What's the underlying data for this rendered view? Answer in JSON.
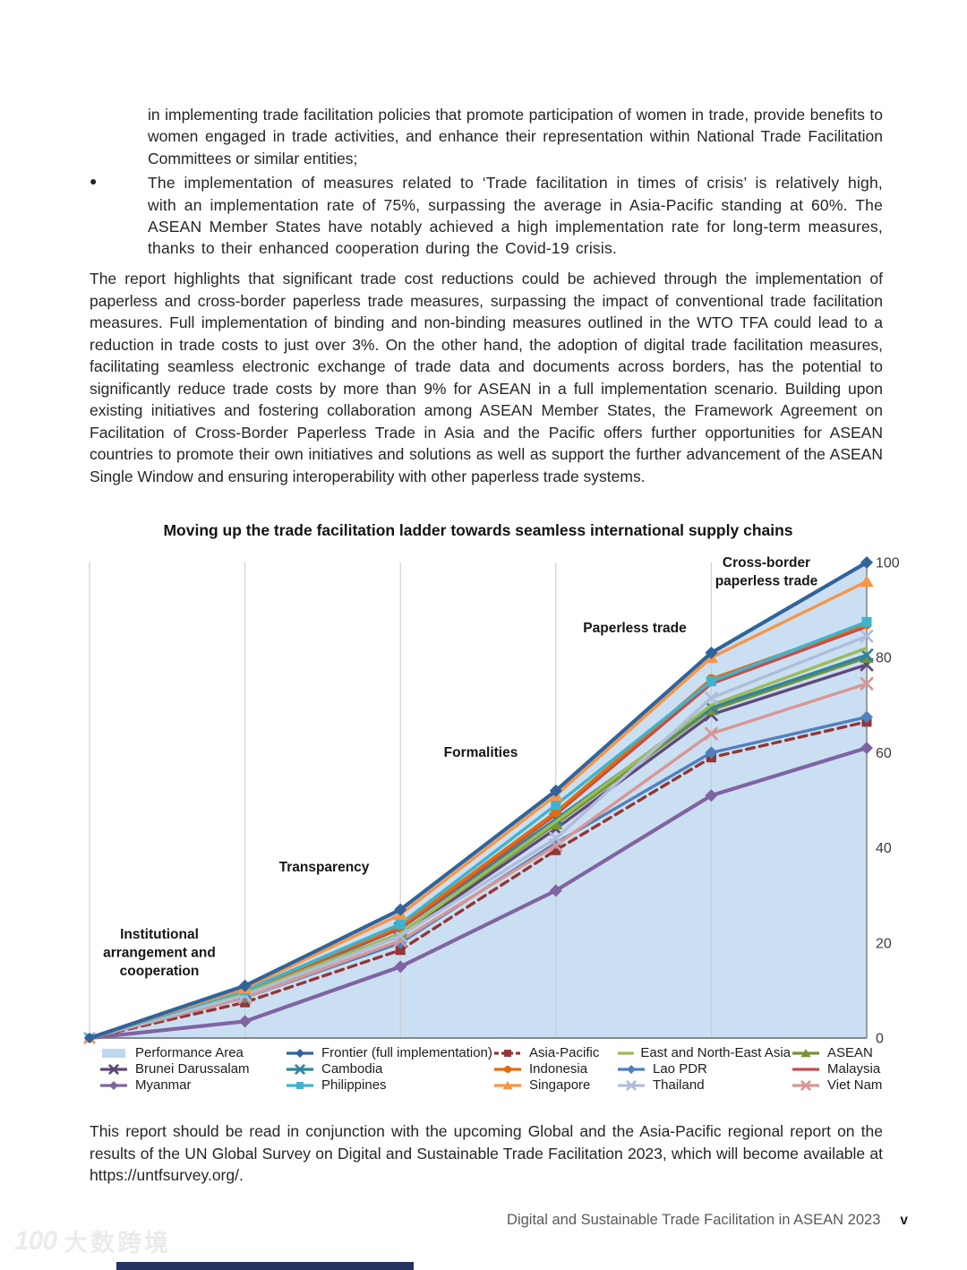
{
  "document": {
    "bullets": [
      {
        "marker": "",
        "text": "in implementing trade facilitation policies that promote participation of women in trade, provide benefits to women engaged in trade activities, and enhance their representation within National Trade Facilitation Committees or similar entities;"
      },
      {
        "marker": "●",
        "text": "The implementation of measures related to ‘Trade facilitation in times of crisis’ is relatively high, with an implementation rate of 75%, surpassing the average in Asia-Pacific standing at 60%. The ASEAN Member States have notably achieved a high implementation rate for long-term measures, thanks to their enhanced cooperation during the Covid-19 crisis."
      }
    ],
    "paragraph": "The report highlights that significant trade cost reductions could be achieved through the implementation of paperless and cross-border paperless trade measures, surpassing the impact of conventional trade facilitation measures. Full implementation of binding and non-binding measures outlined in the WTO TFA could lead to a reduction in trade costs to just over 3%. On the other hand, the adoption of digital trade facilitation measures, facilitating seamless electronic exchange of trade data and documents across borders, has the potential to significantly reduce trade costs by more than 9% for ASEAN in a full implementation scenario. Building upon existing initiatives and fostering collaboration among ASEAN Member States, the Framework Agreement on Facilitation of Cross-Border Paperless Trade in Asia and the Pacific offers further opportunities for ASEAN countries to promote their own initiatives and solutions as well as support the further advancement of the ASEAN Single Window and ensuring interoperability with other paperless trade systems.",
    "footnote": "This report should be read in conjunction with the upcoming Global and the Asia-Pacific regional report on the results of the UN Global Survey on Digital and Sustainable Trade Facilitation 2023, which will become available at https://untfsurvey.org/.",
    "footer": {
      "title": "Digital and Sustainable Trade Facilitation in ASEAN 2023",
      "page_number": "v"
    },
    "watermark": {
      "logo": "100",
      "text": "大数跨境"
    }
  },
  "chart_data": {
    "type": "line",
    "title": "Moving up the trade facilitation ladder towards seamless international supply chains",
    "categories": [
      "Institutional arrangement and cooperation",
      "Transparency",
      "Formalities",
      "Paperless trade",
      "Cross-border paperless trade"
    ],
    "stage_labels": [
      {
        "text": "Institutional arrangement and cooperation",
        "lines": [
          "Institutional",
          "arrangement and",
          "cooperation"
        ]
      },
      {
        "text": "Transparency",
        "lines": [
          "Transparency"
        ]
      },
      {
        "text": "Formalities",
        "lines": [
          "Formalities"
        ]
      },
      {
        "text": "Paperless trade",
        "lines": [
          "Paperless trade"
        ]
      },
      {
        "text": "Cross-border paperless trade",
        "lines": [
          "Cross-border",
          "paperless trade"
        ]
      }
    ],
    "ylim": [
      0,
      100
    ],
    "y_ticks": [
      0,
      20,
      40,
      60,
      80,
      100
    ],
    "grid": "vertical-gridlines",
    "legend_position": "bottom",
    "origin_value": 0,
    "area": {
      "name": "Performance Area",
      "top_series": "Frontier (full implementation)",
      "fill": "#CBDFF3",
      "legend_swatch": "#BDD7EE"
    },
    "series": [
      {
        "name": "Myanmar",
        "color": "#8064A2",
        "marker": "diamond",
        "dash": false,
        "values": [
          3.5,
          15,
          31,
          51,
          61
        ]
      },
      {
        "name": "Asia-Pacific",
        "color": "#943634",
        "marker": "square",
        "dash": true,
        "values": [
          7.5,
          18.5,
          39.5,
          59,
          66.5
        ]
      },
      {
        "name": "Lao PDR",
        "color": "#4F81BD",
        "marker": "diamond",
        "dash": false,
        "values": [
          8.5,
          20,
          41,
          60,
          67.5
        ]
      },
      {
        "name": "Viet Nam",
        "color": "#D99694",
        "marker": "x",
        "dash": false,
        "values": [
          8.5,
          20.5,
          40.5,
          64,
          74.5
        ]
      },
      {
        "name": "Brunei Darussalam",
        "color": "#5F497A",
        "marker": "x",
        "dash": false,
        "values": [
          9,
          21.5,
          44,
          68,
          78.5
        ]
      },
      {
        "name": "ASEAN",
        "color": "#76923C",
        "marker": "triangle",
        "dash": false,
        "values": [
          9,
          22,
          45,
          69,
          80
        ]
      },
      {
        "name": "Cambodia",
        "color": "#31859B",
        "marker": "x",
        "dash": false,
        "values": [
          9.5,
          23,
          46,
          69.5,
          80.5
        ]
      },
      {
        "name": "East and North-East Asia",
        "color": "#9BBB59",
        "marker": "none",
        "dash": false,
        "values": [
          9.5,
          22,
          45.5,
          70,
          82
        ]
      },
      {
        "name": "Thailand",
        "color": "#AFBDDA",
        "marker": "x",
        "dash": false,
        "values": [
          9,
          21.5,
          42,
          71.5,
          84.5
        ]
      },
      {
        "name": "Malaysia",
        "color": "#C0504D",
        "marker": "none",
        "dash": false,
        "values": [
          10,
          23,
          47,
          74.5,
          86.5
        ]
      },
      {
        "name": "Indonesia",
        "color": "#E36C09",
        "marker": "circle",
        "dash": false,
        "values": [
          10,
          23.5,
          47.5,
          75.5,
          87
        ]
      },
      {
        "name": "Philippines",
        "color": "#3FB3CC",
        "marker": "square",
        "dash": false,
        "values": [
          10,
          24,
          49,
          75,
          87.5
        ]
      },
      {
        "name": "Singapore",
        "color": "#F79646",
        "marker": "triangle",
        "dash": false,
        "values": [
          10.5,
          26,
          51,
          80,
          96
        ]
      },
      {
        "name": "Frontier (full implementation)",
        "color": "#31649B",
        "marker": "diamond",
        "dash": false,
        "values": [
          11,
          27,
          52,
          81,
          100
        ]
      }
    ],
    "legend_order": [
      "Performance Area",
      "Frontier (full implementation)",
      "Asia-Pacific",
      "East and North-East Asia",
      "ASEAN",
      "Brunei Darussalam",
      "Cambodia",
      "Indonesia",
      "Lao PDR",
      "Malaysia",
      "Myanmar",
      "Philippines",
      "Singapore",
      "Thailand",
      "Viet Nam"
    ]
  }
}
